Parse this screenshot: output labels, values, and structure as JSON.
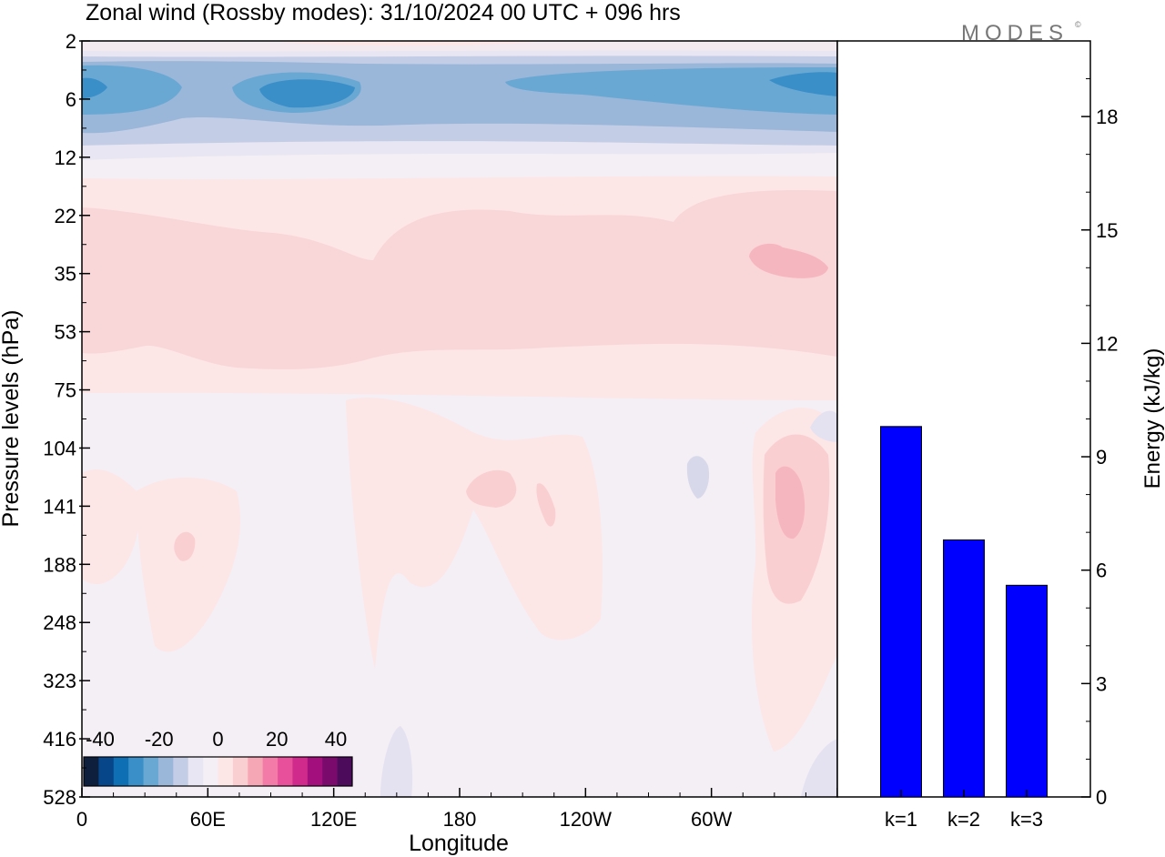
{
  "title": "Zonal wind (Rossby modes):  31/10/2024  00 UTC  + 096 hrs",
  "brand": {
    "text": "MODES",
    "mark": "©"
  },
  "chart_data": [
    {
      "type": "heatmap",
      "variable": "Zonal wind (Rossby modes)",
      "xlabel": "Longitude",
      "ylabel": "Pressure levels (hPa)",
      "x_ticks": [
        "0",
        "60E",
        "120E",
        "180",
        "120W",
        "60W"
      ],
      "x_tick_values": [
        0,
        60,
        120,
        180,
        240,
        300
      ],
      "x_range": [
        0,
        360
      ],
      "y_ticks": [
        "2",
        "6",
        "12",
        "22",
        "35",
        "53",
        "75",
        "104",
        "141",
        "188",
        "248",
        "323",
        "416",
        "528"
      ],
      "y_scale": "pressure levels (top 2 hPa, bottom 528 hPa)",
      "colorbar": {
        "tick_labels": [
          "-40",
          "-20",
          "0",
          "20",
          "40"
        ],
        "tick_values": [
          -40,
          -20,
          0,
          20,
          40
        ],
        "colors": [
          "#0d1f3d",
          "#08468a",
          "#0f6fb4",
          "#3a8fc8",
          "#6aa8d4",
          "#9ab7d9",
          "#c4cde6",
          "#e7e6f2",
          "#f4eef5",
          "#fde6e6",
          "#f9cfd1",
          "#f6a7b6",
          "#f27ba7",
          "#e9509b",
          "#cf2a8c",
          "#a30f7c",
          "#7a0a6c",
          "#4d0b5c"
        ]
      },
      "features": [
        {
          "description": "Easterly band",
          "level_hPa": [
            4,
            9
          ],
          "value_approx": -20
        },
        {
          "description": "Westerly band",
          "level_hPa": [
            20,
            60
          ],
          "value_approx": 10
        }
      ]
    },
    {
      "type": "bar",
      "categories": [
        "k=1",
        "k=2",
        "k=3"
      ],
      "values": [
        9.8,
        6.8,
        5.6
      ],
      "ylabel": "Energy (kJ/kg)",
      "y_ticks": [
        0,
        3,
        6,
        9,
        12,
        15,
        18
      ],
      "ylim": [
        0,
        20
      ],
      "bar_color": "#0000ff"
    }
  ]
}
